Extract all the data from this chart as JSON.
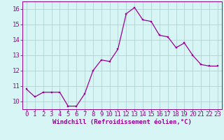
{
  "x": [
    0,
    1,
    2,
    3,
    4,
    5,
    6,
    7,
    8,
    9,
    10,
    11,
    12,
    13,
    14,
    15,
    16,
    17,
    18,
    19,
    20,
    21,
    22,
    23
  ],
  "y": [
    10.8,
    10.3,
    10.6,
    10.6,
    10.6,
    9.7,
    9.7,
    10.5,
    12.0,
    12.7,
    12.6,
    13.4,
    15.7,
    16.1,
    15.3,
    15.2,
    14.3,
    14.2,
    13.5,
    13.8,
    13.0,
    12.4,
    12.3,
    12.3
  ],
  "xlabel": "Windchill (Refroidissement éolien,°C)",
  "ylim": [
    9.5,
    16.5
  ],
  "xlim": [
    -0.5,
    23.5
  ],
  "yticks": [
    10,
    11,
    12,
    13,
    14,
    15,
    16
  ],
  "xticks": [
    0,
    1,
    2,
    3,
    4,
    5,
    6,
    7,
    8,
    9,
    10,
    11,
    12,
    13,
    14,
    15,
    16,
    17,
    18,
    19,
    20,
    21,
    22,
    23
  ],
  "line_color": "#990099",
  "marker_color": "#990099",
  "bg_color": "#d8f5f5",
  "grid_color": "#aacccc",
  "tick_color": "#990099",
  "xlabel_color": "#990099",
  "xlabel_fontsize": 6.5,
  "tick_fontsize": 6.5
}
